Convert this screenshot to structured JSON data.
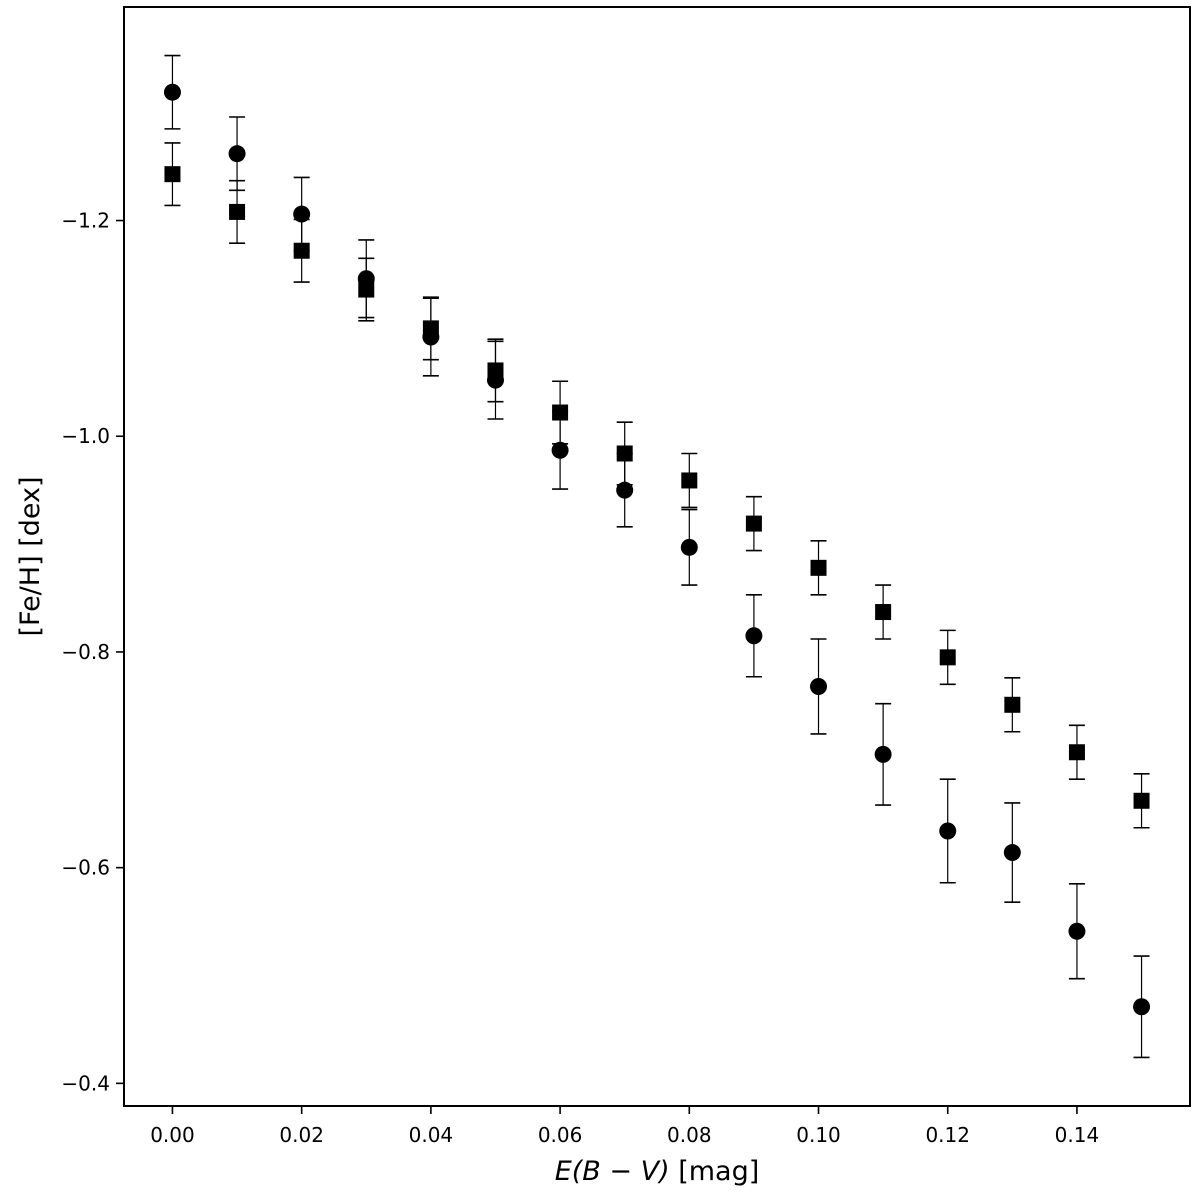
{
  "chart_data": {
    "type": "scatter",
    "title": "",
    "xlabel": {
      "italic": "E(B − V)",
      "unit": " [mag]"
    },
    "ylabel": "[Fe/H] [dex]",
    "xlim": [
      -0.0075,
      0.1575
    ],
    "ylim": [
      -1.398,
      -0.379
    ],
    "y_inverted": true,
    "grid": false,
    "legend": "none",
    "x_ticks": [
      0.0,
      0.02,
      0.04,
      0.06,
      0.08,
      0.1,
      0.12,
      0.14
    ],
    "x_tick_labels": [
      "0.00",
      "0.02",
      "0.04",
      "0.06",
      "0.08",
      "0.10",
      "0.12",
      "0.14"
    ],
    "y_ticks": [
      -1.2,
      -1.0,
      -0.8,
      -0.6,
      -0.4
    ],
    "y_tick_labels": [
      "−1.2",
      "−1.0",
      "−0.8",
      "−0.6",
      "−0.4"
    ],
    "series": [
      {
        "marker": "circle",
        "color": "#000000",
        "x": [
          0.0,
          0.01,
          0.02,
          0.03,
          0.04,
          0.05,
          0.06,
          0.07,
          0.08,
          0.09,
          0.1,
          0.11,
          0.12,
          0.13,
          0.14,
          0.15
        ],
        "y": [
          -1.319,
          -1.262,
          -1.206,
          -1.146,
          -1.092,
          -1.052,
          -0.987,
          -0.95,
          -0.897,
          -0.815,
          -0.768,
          -0.705,
          -0.634,
          -0.614,
          -0.541,
          -0.471
        ],
        "yerr": [
          0.034,
          0.034,
          0.034,
          0.036,
          0.036,
          0.036,
          0.036,
          0.034,
          0.035,
          0.038,
          0.044,
          0.047,
          0.048,
          0.046,
          0.044,
          0.047
        ]
      },
      {
        "marker": "square",
        "color": "#000000",
        "x": [
          0.0,
          0.01,
          0.02,
          0.03,
          0.04,
          0.05,
          0.06,
          0.07,
          0.08,
          0.09,
          0.1,
          0.11,
          0.12,
          0.13,
          0.14,
          0.15
        ],
        "y": [
          -1.243,
          -1.208,
          -1.172,
          -1.136,
          -1.1,
          -1.061,
          -1.022,
          -0.984,
          -0.959,
          -0.919,
          -0.878,
          -0.837,
          -0.795,
          -0.751,
          -0.707,
          -0.662
        ],
        "yerr": [
          0.029,
          0.029,
          0.029,
          0.029,
          0.029,
          0.029,
          0.029,
          0.029,
          0.025,
          0.025,
          0.025,
          0.025,
          0.025,
          0.025,
          0.025,
          0.025
        ]
      }
    ]
  }
}
